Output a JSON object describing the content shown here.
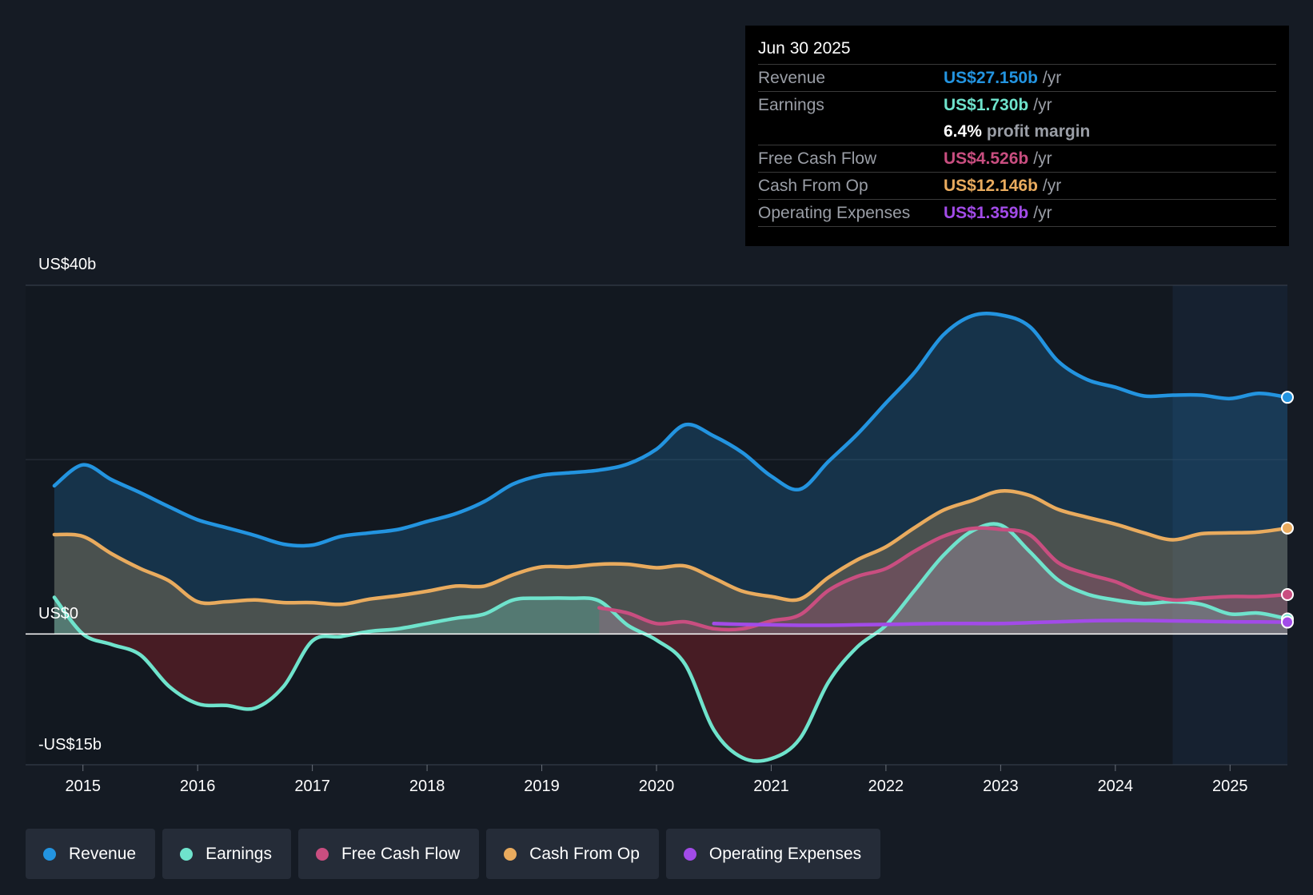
{
  "colors": {
    "revenue": "#2394e0",
    "earnings": "#6fe3cc",
    "fcf": "#c94e80",
    "cfo": "#e9ab5e",
    "opex": "#a24be8",
    "background": "#151b24"
  },
  "tooltip": {
    "date": "Jun 30 2025",
    "rows": [
      {
        "label": "Revenue",
        "value": "US$27.150b",
        "unit": "/yr"
      },
      {
        "label": "Earnings",
        "value": "US$1.730b",
        "unit": "/yr"
      },
      {
        "label": "",
        "value": "6.4%",
        "unit": "profit margin"
      },
      {
        "label": "Free Cash Flow",
        "value": "US$4.526b",
        "unit": "/yr"
      },
      {
        "label": "Cash From Op",
        "value": "US$12.146b",
        "unit": "/yr"
      },
      {
        "label": "Operating Expenses",
        "value": "US$1.359b",
        "unit": "/yr"
      }
    ]
  },
  "legend": [
    {
      "label": "Revenue",
      "color": "#2394e0"
    },
    {
      "label": "Earnings",
      "color": "#6fe3cc"
    },
    {
      "label": "Free Cash Flow",
      "color": "#c94e80"
    },
    {
      "label": "Cash From Op",
      "color": "#e9ab5e"
    },
    {
      "label": "Operating Expenses",
      "color": "#a24be8"
    }
  ],
  "chart_data": {
    "type": "area",
    "title": "",
    "xlabel": "",
    "ylabel": "",
    "y_tick_labels": {
      "top": "US$40b",
      "zero": "US$0",
      "bottom": "-US$15b"
    },
    "ylim": [
      -15,
      40
    ],
    "xlim": [
      2014.5,
      2025.5
    ],
    "x_ticks": [
      2015,
      2016,
      2017,
      2018,
      2019,
      2020,
      2021,
      2022,
      2023,
      2024,
      2025
    ],
    "forecast_shade_start": 2024.5,
    "series": [
      {
        "name": "Revenue",
        "key": "revenue",
        "points": [
          [
            2014.75,
            17
          ],
          [
            2015.0,
            19.4
          ],
          [
            2015.25,
            17.7
          ],
          [
            2015.5,
            16.2
          ],
          [
            2015.75,
            14.6
          ],
          [
            2016.0,
            13.1
          ],
          [
            2016.25,
            12.2
          ],
          [
            2016.5,
            11.3
          ],
          [
            2016.75,
            10.3
          ],
          [
            2017.0,
            10.2
          ],
          [
            2017.25,
            11.2
          ],
          [
            2017.5,
            11.6
          ],
          [
            2017.75,
            12.0
          ],
          [
            2018.0,
            12.9
          ],
          [
            2018.25,
            13.8
          ],
          [
            2018.5,
            15.2
          ],
          [
            2018.75,
            17.2
          ],
          [
            2019.0,
            18.2
          ],
          [
            2019.25,
            18.5
          ],
          [
            2019.5,
            18.8
          ],
          [
            2019.75,
            19.5
          ],
          [
            2020.0,
            21.2
          ],
          [
            2020.25,
            24.0
          ],
          [
            2020.5,
            22.7
          ],
          [
            2020.75,
            20.8
          ],
          [
            2021.0,
            18.1
          ],
          [
            2021.25,
            16.6
          ],
          [
            2021.5,
            19.8
          ],
          [
            2021.75,
            22.9
          ],
          [
            2022.0,
            26.5
          ],
          [
            2022.25,
            30.0
          ],
          [
            2022.5,
            34.3
          ],
          [
            2022.75,
            36.5
          ],
          [
            2023.0,
            36.6
          ],
          [
            2023.25,
            35.3
          ],
          [
            2023.5,
            31.3
          ],
          [
            2023.75,
            29.2
          ],
          [
            2024.0,
            28.3
          ],
          [
            2024.25,
            27.3
          ],
          [
            2024.5,
            27.4
          ],
          [
            2024.75,
            27.4
          ],
          [
            2025.0,
            27.0
          ],
          [
            2025.25,
            27.6
          ],
          [
            2025.5,
            27.15
          ]
        ]
      },
      {
        "name": "Earnings",
        "key": "earnings",
        "points": [
          [
            2014.75,
            4.2
          ],
          [
            2015.0,
            0.0
          ],
          [
            2015.25,
            -1.2
          ],
          [
            2015.5,
            -2.4
          ],
          [
            2015.75,
            -6.0
          ],
          [
            2016.0,
            -8.0
          ],
          [
            2016.25,
            -8.2
          ],
          [
            2016.5,
            -8.5
          ],
          [
            2016.75,
            -6.0
          ],
          [
            2017.0,
            -0.8
          ],
          [
            2017.25,
            -0.3
          ],
          [
            2017.5,
            0.3
          ],
          [
            2017.75,
            0.6
          ],
          [
            2018.0,
            1.2
          ],
          [
            2018.25,
            1.8
          ],
          [
            2018.5,
            2.3
          ],
          [
            2018.75,
            3.9
          ],
          [
            2019.0,
            4.1
          ],
          [
            2019.25,
            4.1
          ],
          [
            2019.5,
            3.8
          ],
          [
            2019.75,
            1.0
          ],
          [
            2020.0,
            -0.7
          ],
          [
            2020.25,
            -3.5
          ],
          [
            2020.5,
            -11.0
          ],
          [
            2020.75,
            -14.2
          ],
          [
            2021.0,
            -14.3
          ],
          [
            2021.25,
            -12.0
          ],
          [
            2021.5,
            -5.5
          ],
          [
            2021.75,
            -1.5
          ],
          [
            2022.0,
            1.0
          ],
          [
            2022.25,
            5.0
          ],
          [
            2022.5,
            9.0
          ],
          [
            2022.75,
            11.8
          ],
          [
            2023.0,
            12.5
          ],
          [
            2023.25,
            9.5
          ],
          [
            2023.5,
            6.2
          ],
          [
            2023.75,
            4.6
          ],
          [
            2024.0,
            3.9
          ],
          [
            2024.25,
            3.5
          ],
          [
            2024.5,
            3.7
          ],
          [
            2024.75,
            3.4
          ],
          [
            2025.0,
            2.3
          ],
          [
            2025.25,
            2.4
          ],
          [
            2025.5,
            1.73
          ]
        ]
      },
      {
        "name": "Free Cash Flow",
        "key": "fcf",
        "points": [
          [
            2019.5,
            3.0
          ],
          [
            2019.75,
            2.4
          ],
          [
            2020.0,
            1.2
          ],
          [
            2020.25,
            1.4
          ],
          [
            2020.5,
            0.6
          ],
          [
            2020.75,
            0.6
          ],
          [
            2021.0,
            1.5
          ],
          [
            2021.25,
            2.2
          ],
          [
            2021.5,
            5.0
          ],
          [
            2021.75,
            6.6
          ],
          [
            2022.0,
            7.5
          ],
          [
            2022.25,
            9.5
          ],
          [
            2022.5,
            11.2
          ],
          [
            2022.75,
            12.1
          ],
          [
            2023.0,
            12.0
          ],
          [
            2023.25,
            11.4
          ],
          [
            2023.5,
            8.2
          ],
          [
            2023.75,
            6.9
          ],
          [
            2024.0,
            6.0
          ],
          [
            2024.25,
            4.6
          ],
          [
            2024.5,
            3.9
          ],
          [
            2024.75,
            4.1
          ],
          [
            2025.0,
            4.3
          ],
          [
            2025.25,
            4.3
          ],
          [
            2025.5,
            4.526
          ]
        ]
      },
      {
        "name": "Cash From Op",
        "key": "cfo",
        "points": [
          [
            2014.75,
            11.4
          ],
          [
            2015.0,
            11.2
          ],
          [
            2015.25,
            9.2
          ],
          [
            2015.5,
            7.5
          ],
          [
            2015.75,
            6.1
          ],
          [
            2016.0,
            3.7
          ],
          [
            2016.25,
            3.7
          ],
          [
            2016.5,
            3.9
          ],
          [
            2016.75,
            3.6
          ],
          [
            2017.0,
            3.6
          ],
          [
            2017.25,
            3.4
          ],
          [
            2017.5,
            4.0
          ],
          [
            2017.75,
            4.4
          ],
          [
            2018.0,
            4.9
          ],
          [
            2018.25,
            5.5
          ],
          [
            2018.5,
            5.5
          ],
          [
            2018.75,
            6.8
          ],
          [
            2019.0,
            7.7
          ],
          [
            2019.25,
            7.7
          ],
          [
            2019.5,
            8.0
          ],
          [
            2019.75,
            8.0
          ],
          [
            2020.0,
            7.6
          ],
          [
            2020.25,
            7.8
          ],
          [
            2020.5,
            6.4
          ],
          [
            2020.75,
            4.9
          ],
          [
            2021.0,
            4.3
          ],
          [
            2021.25,
            4.0
          ],
          [
            2021.5,
            6.5
          ],
          [
            2021.75,
            8.5
          ],
          [
            2022.0,
            10.0
          ],
          [
            2022.25,
            12.2
          ],
          [
            2022.5,
            14.2
          ],
          [
            2022.75,
            15.3
          ],
          [
            2023.0,
            16.4
          ],
          [
            2023.25,
            15.9
          ],
          [
            2023.5,
            14.3
          ],
          [
            2023.75,
            13.4
          ],
          [
            2024.0,
            12.6
          ],
          [
            2024.25,
            11.6
          ],
          [
            2024.5,
            10.8
          ],
          [
            2024.75,
            11.5
          ],
          [
            2025.0,
            11.6
          ],
          [
            2025.25,
            11.7
          ],
          [
            2025.5,
            12.146
          ]
        ]
      },
      {
        "name": "Operating Expenses",
        "key": "opex",
        "points": [
          [
            2020.5,
            1.2
          ],
          [
            2020.75,
            1.1
          ],
          [
            2021.0,
            1.05
          ],
          [
            2021.25,
            1.0
          ],
          [
            2021.5,
            1.0
          ],
          [
            2021.75,
            1.05
          ],
          [
            2022.0,
            1.1
          ],
          [
            2022.25,
            1.15
          ],
          [
            2022.5,
            1.2
          ],
          [
            2022.75,
            1.2
          ],
          [
            2023.0,
            1.2
          ],
          [
            2023.25,
            1.3
          ],
          [
            2023.5,
            1.4
          ],
          [
            2023.75,
            1.5
          ],
          [
            2024.0,
            1.55
          ],
          [
            2024.25,
            1.55
          ],
          [
            2024.5,
            1.5
          ],
          [
            2024.75,
            1.45
          ],
          [
            2025.0,
            1.4
          ],
          [
            2025.25,
            1.38
          ],
          [
            2025.5,
            1.359
          ]
        ]
      }
    ]
  }
}
